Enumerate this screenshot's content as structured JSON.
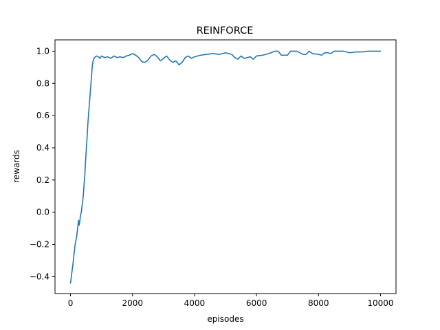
{
  "chart_data": {
    "type": "line",
    "title": "REINFORCE",
    "xlabel": "episodes",
    "ylabel": "rewards",
    "xlim": [
      -500,
      10500
    ],
    "ylim": [
      -0.505,
      1.07
    ],
    "grid": false,
    "legend": "none",
    "xticks": [
      0,
      2000,
      4000,
      6000,
      8000,
      10000
    ],
    "xtick_labels": [
      "0",
      "2000",
      "4000",
      "6000",
      "8000",
      "10000"
    ],
    "yticks": [
      -0.4,
      -0.2,
      0.0,
      0.2,
      0.4,
      0.6,
      0.8,
      1.0
    ],
    "ytick_labels": [
      "−0.4",
      "−0.2",
      "0.0",
      "0.2",
      "0.4",
      "0.6",
      "0.8",
      "1.0"
    ],
    "series": [
      {
        "color": "#1f77b4",
        "x": [
          0,
          80,
          150,
          200,
          230,
          260,
          280,
          300,
          320,
          350,
          380,
          400,
          420,
          440,
          460,
          480,
          500,
          520,
          540,
          560,
          580,
          600,
          620,
          640,
          660,
          680,
          700,
          720,
          740,
          760,
          780,
          800,
          850,
          900,
          950,
          1000,
          1100,
          1200,
          1300,
          1400,
          1500,
          1600,
          1700,
          1800,
          1900,
          2000,
          2100,
          2200,
          2300,
          2400,
          2500,
          2600,
          2700,
          2800,
          2900,
          3000,
          3100,
          3200,
          3300,
          3400,
          3500,
          3600,
          3700,
          3800,
          3900,
          4000,
          4200,
          4400,
          4600,
          4800,
          5000,
          5200,
          5300,
          5400,
          5500,
          5600,
          5700,
          5800,
          5900,
          6000,
          6200,
          6400,
          6600,
          6700,
          6800,
          7000,
          7100,
          7300,
          7500,
          7600,
          7700,
          7800,
          8000,
          8100,
          8200,
          8300,
          8400,
          8500,
          8800,
          9000,
          9200,
          9400,
          9600,
          9800,
          10000
        ],
        "y": [
          -0.44,
          -0.32,
          -0.2,
          -0.15,
          -0.1,
          -0.05,
          -0.08,
          -0.06,
          -0.02,
          0.0,
          0.05,
          0.08,
          0.12,
          0.18,
          0.22,
          0.3,
          0.36,
          0.42,
          0.48,
          0.55,
          0.6,
          0.65,
          0.7,
          0.75,
          0.8,
          0.85,
          0.9,
          0.93,
          0.95,
          0.955,
          0.96,
          0.965,
          0.97,
          0.965,
          0.955,
          0.97,
          0.96,
          0.965,
          0.955,
          0.97,
          0.96,
          0.965,
          0.96,
          0.97,
          0.975,
          0.985,
          0.975,
          0.96,
          0.935,
          0.93,
          0.945,
          0.97,
          0.98,
          0.965,
          0.94,
          0.955,
          0.97,
          0.945,
          0.93,
          0.94,
          0.915,
          0.93,
          0.96,
          0.97,
          0.955,
          0.965,
          0.975,
          0.98,
          0.985,
          0.98,
          0.99,
          0.98,
          0.96,
          0.95,
          0.97,
          0.955,
          0.96,
          0.965,
          0.95,
          0.97,
          0.975,
          0.985,
          1.0,
          1.0,
          0.975,
          0.975,
          1.0,
          1.0,
          0.98,
          0.98,
          1.0,
          0.985,
          0.98,
          0.975,
          0.99,
          0.99,
          0.985,
          1.0,
          1.0,
          0.99,
          0.995,
          0.995,
          1.0,
          1.0,
          1.0
        ]
      }
    ]
  }
}
